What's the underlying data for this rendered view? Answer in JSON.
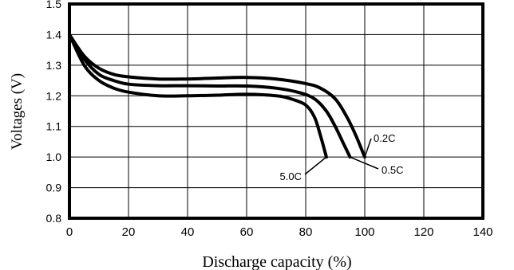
{
  "chart_data": {
    "type": "line",
    "title": "",
    "xlabel": "Discharge capacity (%)",
    "ylabel": "Voltages (V)",
    "xlim": [
      0,
      140
    ],
    "ylim": [
      0.8,
      1.5
    ],
    "x_ticks": [
      0,
      20,
      40,
      60,
      80,
      100,
      120,
      140
    ],
    "y_ticks": [
      0.8,
      0.9,
      1.0,
      1.1,
      1.2,
      1.3,
      1.4,
      1.5
    ],
    "x_tick_labels": [
      "0",
      "20",
      "40",
      "60",
      "80",
      "100",
      "120",
      "140"
    ],
    "y_tick_labels": [
      "0.8",
      "0.9",
      "1.0",
      "1.1",
      "1.2",
      "1.3",
      "1.4",
      "1.5"
    ],
    "grid": true,
    "series": [
      {
        "name": "0.2C",
        "points": [
          [
            0,
            1.4
          ],
          [
            5,
            1.33
          ],
          [
            10,
            1.29
          ],
          [
            15,
            1.27
          ],
          [
            20,
            1.262
          ],
          [
            30,
            1.255
          ],
          [
            40,
            1.255
          ],
          [
            50,
            1.258
          ],
          [
            60,
            1.26
          ],
          [
            70,
            1.255
          ],
          [
            80,
            1.24
          ],
          [
            85,
            1.225
          ],
          [
            90,
            1.19
          ],
          [
            94,
            1.13
          ],
          [
            97,
            1.07
          ],
          [
            100,
            1.0
          ]
        ]
      },
      {
        "name": "0.5C",
        "points": [
          [
            0,
            1.4
          ],
          [
            5,
            1.32
          ],
          [
            10,
            1.27
          ],
          [
            15,
            1.25
          ],
          [
            20,
            1.238
          ],
          [
            30,
            1.233
          ],
          [
            40,
            1.233
          ],
          [
            50,
            1.232
          ],
          [
            60,
            1.232
          ],
          [
            70,
            1.225
          ],
          [
            78,
            1.21
          ],
          [
            83,
            1.19
          ],
          [
            87,
            1.15
          ],
          [
            90,
            1.1
          ],
          [
            93,
            1.04
          ],
          [
            95,
            1.0
          ]
        ]
      },
      {
        "name": "5.0C",
        "points": [
          [
            0,
            1.4
          ],
          [
            5,
            1.3
          ],
          [
            10,
            1.25
          ],
          [
            15,
            1.225
          ],
          [
            20,
            1.212
          ],
          [
            30,
            1.2
          ],
          [
            40,
            1.2
          ],
          [
            50,
            1.202
          ],
          [
            60,
            1.205
          ],
          [
            70,
            1.2
          ],
          [
            75,
            1.19
          ],
          [
            80,
            1.17
          ],
          [
            83,
            1.13
          ],
          [
            85,
            1.07
          ],
          [
            87,
            1.0
          ]
        ]
      }
    ],
    "annotations": [
      {
        "text": "0.2C",
        "series": "0.2C"
      },
      {
        "text": "0.5C",
        "series": "0.5C"
      },
      {
        "text": "5.0C",
        "series": "5.0C"
      }
    ]
  }
}
